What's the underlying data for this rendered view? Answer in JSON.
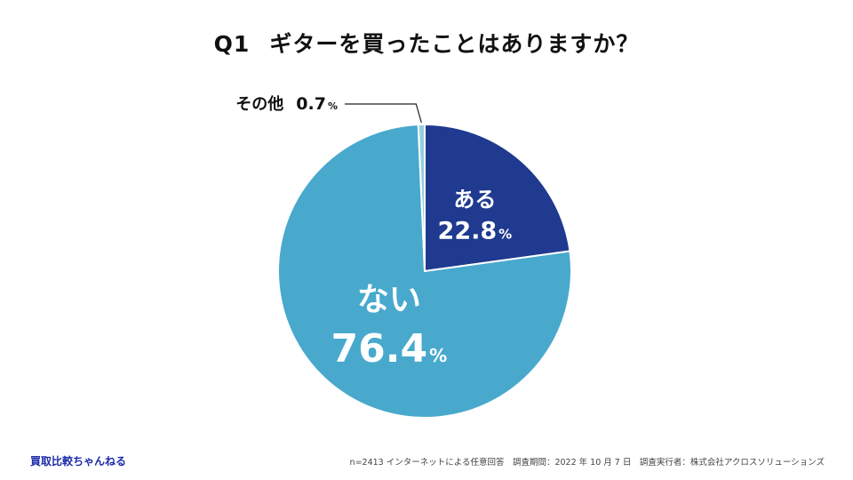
{
  "title": {
    "q": "Q1",
    "text": "ギターを買ったことはありますか？"
  },
  "chart_data": {
    "type": "pie",
    "slices": [
      {
        "label": "ある",
        "value": 22.8,
        "value_text": "22.8",
        "unit": "%",
        "color": "#1f3a8f"
      },
      {
        "label": "ない",
        "value": 76.4,
        "value_text": "76.4",
        "unit": "%",
        "color": "#48a9cd"
      },
      {
        "label": "その他",
        "value": 0.7,
        "value_text": "0.7",
        "unit": "%",
        "color": "#93d0dc"
      }
    ]
  },
  "footer": {
    "brand": "買取比較ちゃんねる",
    "note": "n=2413 インターネットによる任意回答　調査期間：2022 年 10 月 7 日　調査実行者：株式会社アクロスソリューションズ"
  }
}
